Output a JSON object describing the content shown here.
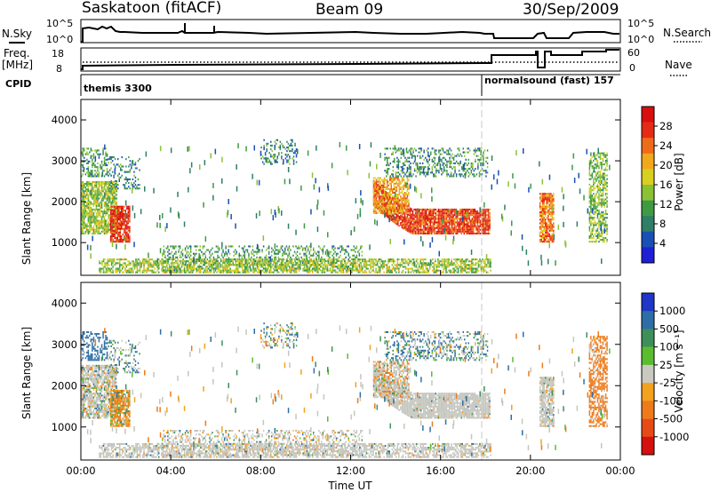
{
  "header": {
    "station": "Saskatoon (fitACF)",
    "beam": "Beam 09",
    "date": "30/Sep/2009"
  },
  "top_panels": {
    "noise": {
      "left_label": "N.Sky",
      "right_label": "N.Search",
      "left_ticks": [
        "10^5",
        "10^0"
      ],
      "right_ticks": [
        "10^5",
        "10^0"
      ]
    },
    "freq": {
      "left_label": "Freq.",
      "left_unit": "[MHz]",
      "right_label": "Nave",
      "left_ticks": [
        "18",
        "8"
      ],
      "right_ticks": [
        "60",
        "0"
      ]
    },
    "cpid": {
      "label": "CPID",
      "modes": [
        {
          "name": "themis 3300",
          "start_hour": 0
        },
        {
          "name": "normalsound (fast) 157",
          "start_hour": 18.1
        }
      ]
    }
  },
  "chart_data": [
    {
      "type": "heatmap",
      "name": "power",
      "ylabel": "Slant Range [km]",
      "xlabel": "",
      "x_range_hours": [
        0,
        24
      ],
      "ylim": [
        200,
        4500
      ],
      "y_ticks": [
        "1000",
        "2000",
        "3000",
        "4000"
      ],
      "x_ticks": [
        "00:00",
        "04:00",
        "08:00",
        "12:00",
        "16:00",
        "20:00",
        "00:00"
      ],
      "colorbar": {
        "label": "Power [dB]",
        "ticks": [
          "4",
          "8",
          "12",
          "16",
          "20",
          "24",
          "28"
        ],
        "colors": [
          "#1f1fd6",
          "#1a4fb5",
          "#2e7f66",
          "#3f9a44",
          "#8ac234",
          "#d8cf20",
          "#f1a81c",
          "#ef6b1a",
          "#e62b14",
          "#d80f0f"
        ]
      }
    },
    {
      "type": "heatmap",
      "name": "velocity",
      "ylabel": "Slant Range [km]",
      "xlabel": "Time UT",
      "x_range_hours": [
        0,
        24
      ],
      "ylim": [
        200,
        4500
      ],
      "y_ticks": [
        "1000",
        "2000",
        "3000",
        "4000"
      ],
      "x_ticks": [
        "00:00",
        "04:00",
        "08:00",
        "12:00",
        "16:00",
        "20:00",
        "00:00"
      ],
      "colorbar": {
        "label": "Velocity [m s⁻¹]",
        "ticks": [
          "1000",
          "500",
          "100",
          "25",
          "-25",
          "-100",
          "-500",
          "-1000"
        ],
        "colors": [
          "#1f36c8",
          "#2d6ea6",
          "#3f8f5a",
          "#5bbd2e",
          "#c9c9c0",
          "#f3a21d",
          "#ee7a1a",
          "#e84a16",
          "#d60f0f"
        ]
      }
    }
  ],
  "colors": {
    "ground_scatter": "#c5c5bf",
    "frame": "#000000",
    "divider": "#c8c8c8"
  }
}
